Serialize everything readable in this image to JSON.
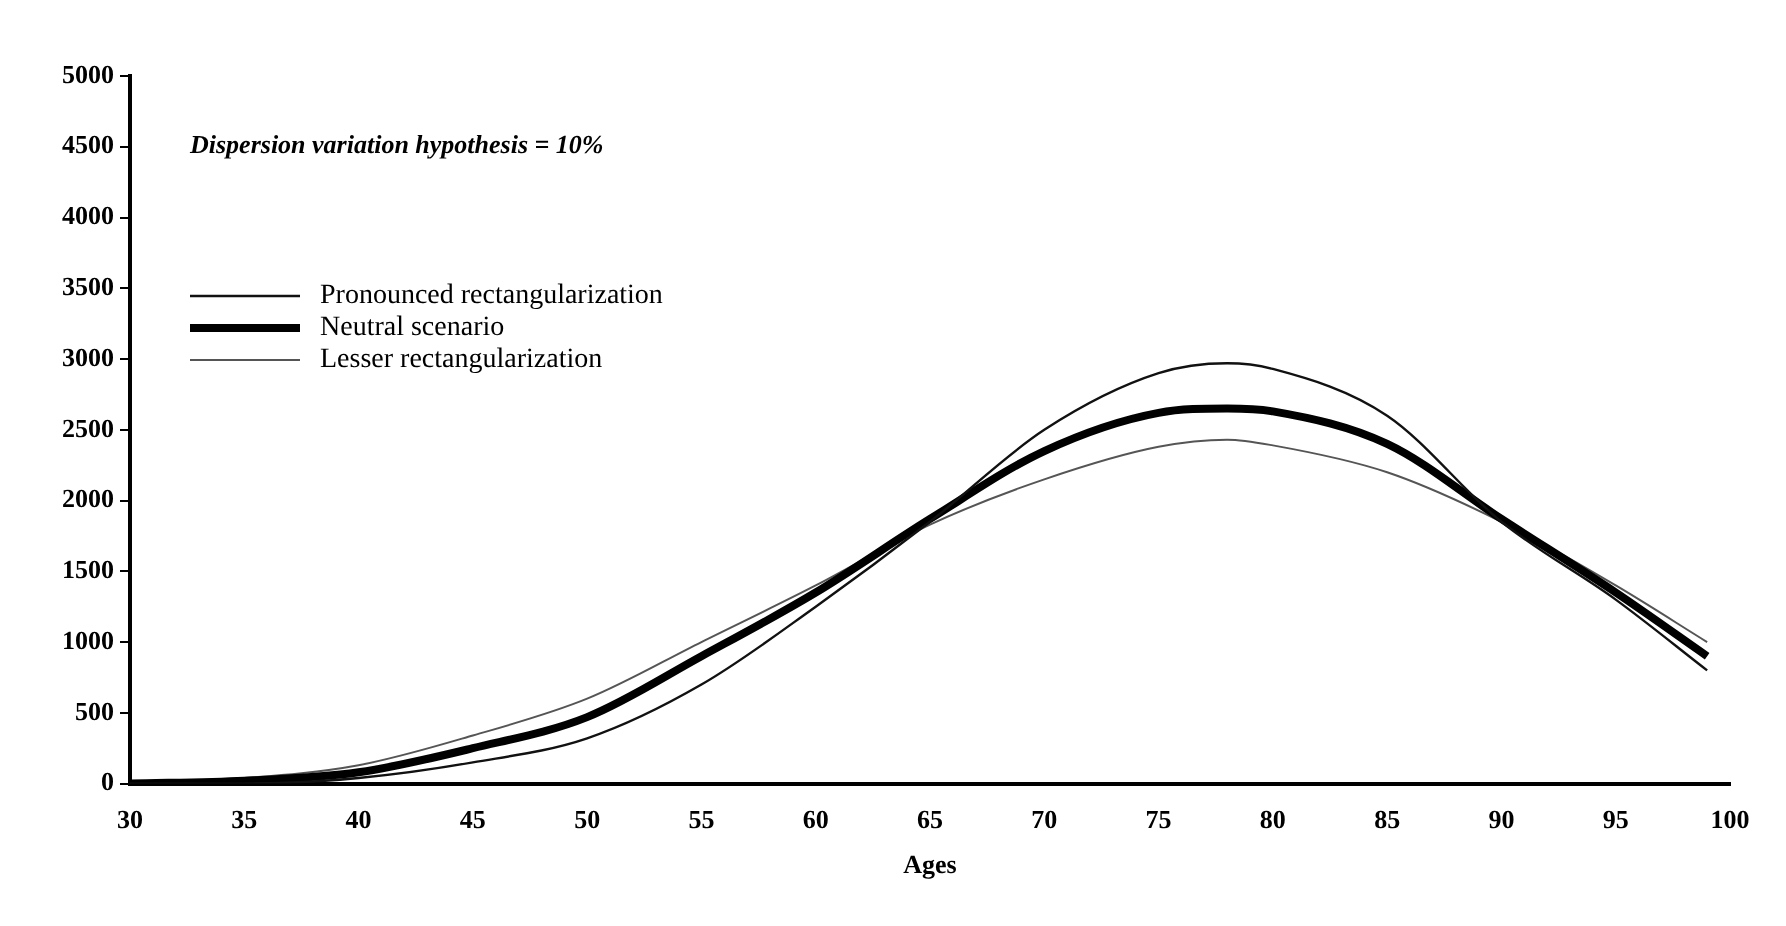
{
  "chart_data": {
    "type": "line",
    "xlabel": "Ages",
    "annotations": [
      "Dispersion variation hypothesis = 10%"
    ],
    "x": [
      30,
      35,
      40,
      45,
      50,
      55,
      60,
      65,
      70,
      75,
      78,
      80,
      85,
      90,
      95,
      99
    ],
    "series": [
      {
        "name": "Pronounced rectangularization",
        "color": "#111111",
        "values": [
          0,
          0,
          40,
          150,
          320,
          700,
          1250,
          1850,
          2500,
          2900,
          2970,
          2930,
          2600,
          1850,
          1300,
          800
        ]
      },
      {
        "name": "Neutral scenario",
        "color": "#000000",
        "values": [
          0,
          20,
          80,
          250,
          470,
          900,
          1350,
          1870,
          2350,
          2620,
          2650,
          2630,
          2400,
          1870,
          1350,
          900
        ]
      },
      {
        "name": "Lesser rectangularization",
        "color": "#555555",
        "values": [
          10,
          40,
          130,
          340,
          600,
          1000,
          1400,
          1830,
          2150,
          2380,
          2430,
          2390,
          2200,
          1850,
          1400,
          1000
        ]
      }
    ],
    "xlim": [
      30,
      100
    ],
    "xticks": [
      30,
      35,
      40,
      45,
      50,
      55,
      60,
      65,
      70,
      75,
      80,
      85,
      90,
      95,
      100
    ],
    "ylim": [
      0,
      5000
    ],
    "yticks": [
      0,
      500,
      1000,
      1500,
      2000,
      2500,
      3000,
      3500,
      4000,
      4500,
      5000
    ],
    "grid": false,
    "legend": "top left",
    "marker": "none",
    "line_style": "solid"
  }
}
